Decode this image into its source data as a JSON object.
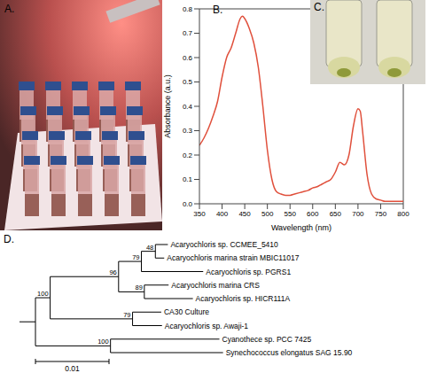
{
  "panel_labels": [
    "A.",
    "B.",
    "C.",
    "D."
  ],
  "chart_data": {
    "type": "line",
    "xlabel": "Wavelength (nm)",
    "ylabel": "Absorbance (a.u.)",
    "x": [
      350,
      360,
      370,
      380,
      390,
      400,
      410,
      420,
      430,
      440,
      445,
      450,
      460,
      470,
      480,
      490,
      500,
      510,
      520,
      530,
      540,
      550,
      560,
      570,
      580,
      590,
      600,
      610,
      620,
      630,
      640,
      650,
      660,
      670,
      680,
      690,
      700,
      705,
      710,
      720,
      730,
      740,
      750,
      760,
      770,
      780,
      790,
      800
    ],
    "values": [
      0.24,
      0.27,
      0.31,
      0.36,
      0.42,
      0.52,
      0.6,
      0.64,
      0.7,
      0.76,
      0.77,
      0.76,
      0.72,
      0.66,
      0.56,
      0.4,
      0.22,
      0.1,
      0.05,
      0.04,
      0.035,
      0.035,
      0.04,
      0.045,
      0.05,
      0.055,
      0.065,
      0.07,
      0.08,
      0.09,
      0.1,
      0.13,
      0.17,
      0.16,
      0.2,
      0.32,
      0.39,
      0.38,
      0.3,
      0.12,
      0.04,
      0.02,
      0.015,
      0.01,
      0.01,
      0.01,
      0.01,
      0.01
    ],
    "color": "#e0503c",
    "xlim": [
      350,
      800
    ],
    "xticks": [
      350,
      400,
      450,
      500,
      550,
      600,
      650,
      700,
      750,
      800
    ],
    "ylim": [
      0,
      0.8
    ],
    "yticks": [
      {
        "value": 0,
        "label": "0.0"
      },
      0.1,
      0.2,
      0.3,
      0.4,
      0.5,
      0.6,
      0.7,
      0.8
    ]
  },
  "tree": {
    "children": [
      {
        "bootstrap": 100,
        "length": 0.002,
        "children": [
          {
            "bootstrap": 96,
            "length": 0.0093,
            "children": [
              {
                "bootstrap": 79,
                "length": 0.0031,
                "children": [
                  {
                    "bootstrap": 48,
                    "length": 0.0019,
                    "children": [
                      {
                        "name": "Acaryochloris sp. CCMEE_5410",
                        "length": 0.0017
                      },
                      {
                        "name": "Acaryochloris marina strain MBIC11017",
                        "length": 0.0012
                      }
                    ]
                  },
                  {
                    "name": "Acaryochloris sp. PGRS1",
                    "length": 0.0084
                  }
                ]
              },
              {
                "bootstrap": 89,
                "length": 0.0035,
                "children": [
                  {
                    "name": "Acaryochloris marina CRS",
                    "length": 0.0033
                  },
                  {
                    "name": "Acaryochloris sp. HICR111A",
                    "length": 0.0066
                  }
                ]
              }
            ]
          },
          {
            "bootstrap": 79,
            "length": 0.0112,
            "children": [
              {
                "name": "CA30 Culture",
                "length": 0.0039
              },
              {
                "name": "Acaryochloris sp. Awaji-1",
                "length": 0.004
              }
            ]
          }
        ]
      },
      {
        "bootstrap": 100,
        "length": 0.0102,
        "children": [
          {
            "name": "Cyanothece sp. PCC 7425",
            "length": 0.0148
          },
          {
            "name": "Synechococcus elongatus SAG 15.90",
            "length": 0.0153
          }
        ]
      }
    ]
  },
  "scale_bar": 0.01
}
